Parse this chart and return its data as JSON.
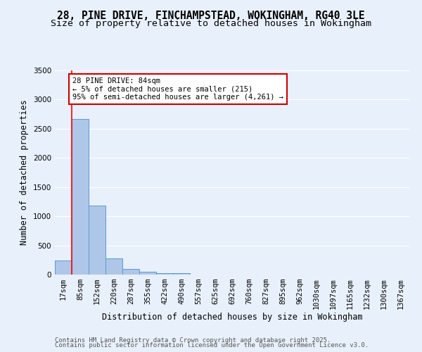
{
  "title_line1": "28, PINE DRIVE, FINCHAMPSTEAD, WOKINGHAM, RG40 3LE",
  "title_line2": "Size of property relative to detached houses in Wokingham",
  "xlabel": "Distribution of detached houses by size in Wokingham",
  "ylabel": "Number of detached properties",
  "bar_categories": [
    "17sqm",
    "85sqm",
    "152sqm",
    "220sqm",
    "287sqm",
    "355sqm",
    "422sqm",
    "490sqm",
    "557sqm",
    "625sqm",
    "692sqm",
    "760sqm",
    "827sqm",
    "895sqm",
    "962sqm",
    "1030sqm",
    "1097sqm",
    "1165sqm",
    "1232sqm",
    "1300sqm",
    "1367sqm"
  ],
  "bar_values": [
    240,
    2670,
    1180,
    280,
    100,
    50,
    30,
    30,
    0,
    0,
    0,
    0,
    0,
    0,
    0,
    0,
    0,
    0,
    0,
    0,
    0
  ],
  "bar_color": "#aec6e8",
  "bar_edge_color": "#5b9bd5",
  "red_line_x": 0.5,
  "annotation_text": "28 PINE DRIVE: 84sqm\n← 5% of detached houses are smaller (215)\n95% of semi-detached houses are larger (4,261) →",
  "annotation_box_color": "#ffffff",
  "annotation_border_color": "#cc0000",
  "ylim": [
    0,
    3500
  ],
  "yticks": [
    0,
    500,
    1000,
    1500,
    2000,
    2500,
    3000,
    3500
  ],
  "bg_color": "#e8f0fb",
  "plot_bg_color": "#e8f0fb",
  "grid_color": "#ffffff",
  "footer_line1": "Contains HM Land Registry data © Crown copyright and database right 2025.",
  "footer_line2": "Contains public sector information licensed under the Open Government Licence v3.0.",
  "title_fontsize": 10.5,
  "subtitle_fontsize": 9.5,
  "axis_label_fontsize": 8.5,
  "tick_fontsize": 7.5,
  "annotation_fontsize": 7.5,
  "footer_fontsize": 6.5
}
